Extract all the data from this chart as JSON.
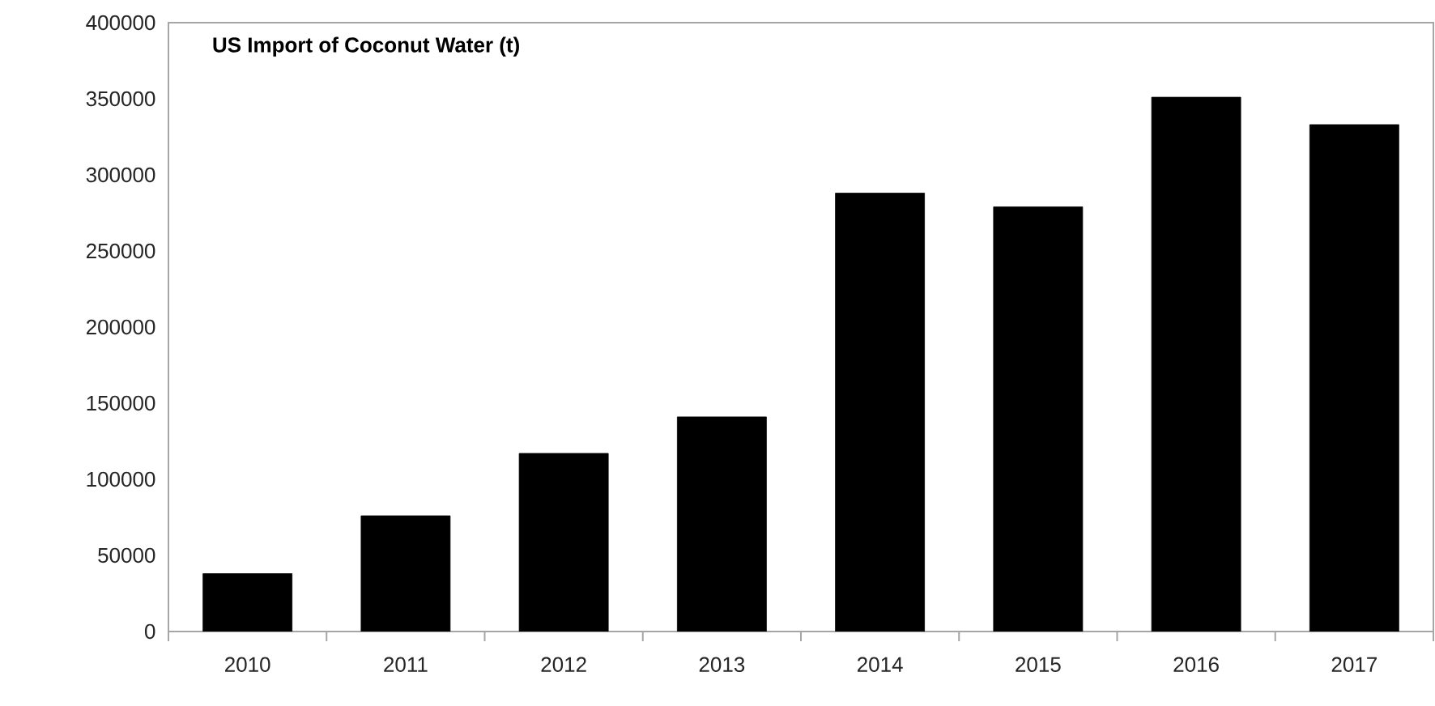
{
  "chart_data": {
    "type": "bar",
    "title": "US Import of Coconut Water (t)",
    "categories": [
      "2010",
      "2011",
      "2012",
      "2013",
      "2014",
      "2015",
      "2016",
      "2017"
    ],
    "values": [
      38000,
      76000,
      117000,
      141000,
      288000,
      279000,
      351000,
      333000
    ],
    "color": "#000000",
    "ylim": [
      0,
      400000
    ],
    "yticks": [
      0,
      50000,
      100000,
      150000,
      200000,
      250000,
      300000,
      350000,
      400000
    ]
  }
}
